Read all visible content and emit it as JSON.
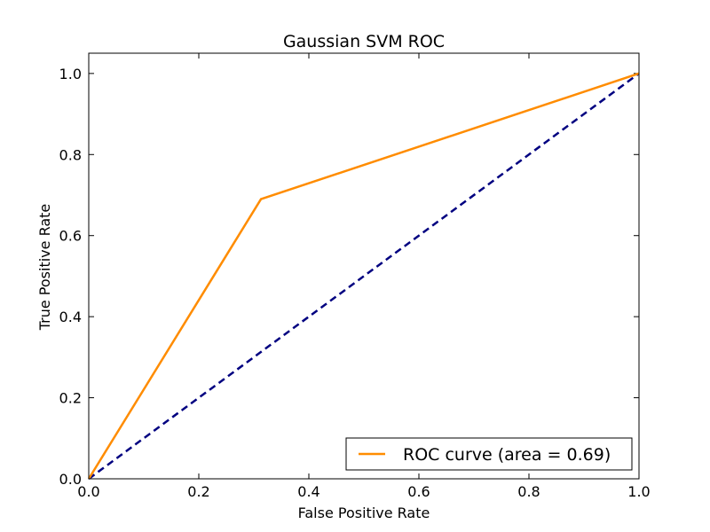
{
  "chart_data": {
    "type": "line",
    "title": "Gaussian SVM ROC",
    "xlabel": "False Positive Rate",
    "ylabel": "True Positive Rate",
    "xlim": [
      0.0,
      1.0
    ],
    "ylim": [
      0.0,
      1.05
    ],
    "xticks": [
      0.0,
      0.2,
      0.4,
      0.6,
      0.8,
      1.0
    ],
    "yticks": [
      0.0,
      0.2,
      0.4,
      0.6,
      0.8,
      1.0
    ],
    "xtick_labels": [
      "0.0",
      "0.2",
      "0.4",
      "0.6",
      "0.8",
      "1.0"
    ],
    "ytick_labels": [
      "0.0",
      "0.2",
      "0.4",
      "0.6",
      "0.8",
      "1.0"
    ],
    "grid": false,
    "legend_position": "lower-right",
    "series": [
      {
        "name": "ROC curve (area = 0.69)",
        "color": "#ff8c00",
        "style": "solid",
        "x": [
          0.0,
          0.313,
          1.0
        ],
        "y": [
          0.0,
          0.69,
          1.0
        ]
      },
      {
        "color": "#000080",
        "style": "dashed",
        "x": [
          0.0,
          1.0
        ],
        "y": [
          0.0,
          1.0
        ]
      }
    ]
  }
}
